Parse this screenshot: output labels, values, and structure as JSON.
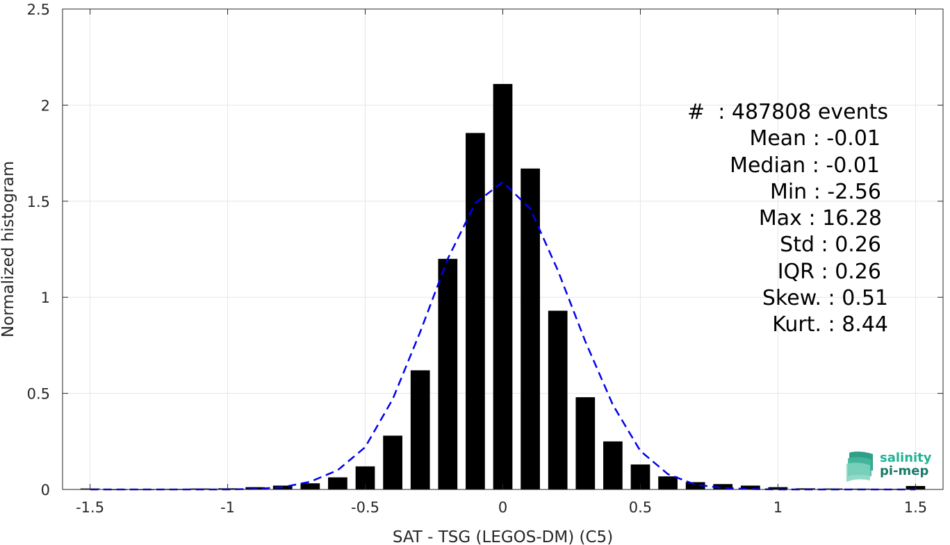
{
  "chart_data": {
    "type": "bar",
    "xlabel": "SAT - TSG (LEGOS-DM) (C5)",
    "ylabel": "Normalized histogram",
    "xlim": [
      -1.6,
      1.6
    ],
    "ylim": [
      0,
      2.5
    ],
    "x_ticks": [
      "-1.5",
      "-1",
      "-0.5",
      "0",
      "0.5",
      "1",
      "1.5"
    ],
    "y_ticks": [
      "0",
      "0.5",
      "1",
      "1.5",
      "2",
      "2.5"
    ],
    "grid": true,
    "bar_width": 0.07,
    "bar_color": "#000000",
    "bars": [
      {
        "x": -1.5,
        "y": 0.005
      },
      {
        "x": -1.4,
        "y": 0.002
      },
      {
        "x": -1.3,
        "y": 0.002
      },
      {
        "x": -1.2,
        "y": 0.003
      },
      {
        "x": -1.1,
        "y": 0.005
      },
      {
        "x": -1.0,
        "y": 0.006
      },
      {
        "x": -0.9,
        "y": 0.012
      },
      {
        "x": -0.8,
        "y": 0.02
      },
      {
        "x": -0.7,
        "y": 0.032
      },
      {
        "x": -0.6,
        "y": 0.063
      },
      {
        "x": -0.5,
        "y": 0.12
      },
      {
        "x": -0.4,
        "y": 0.28
      },
      {
        "x": -0.3,
        "y": 0.62
      },
      {
        "x": -0.2,
        "y": 1.2
      },
      {
        "x": -0.1,
        "y": 1.855
      },
      {
        "x": 0.0,
        "y": 2.11
      },
      {
        "x": 0.1,
        "y": 1.67
      },
      {
        "x": 0.2,
        "y": 0.93
      },
      {
        "x": 0.3,
        "y": 0.48
      },
      {
        "x": 0.4,
        "y": 0.25
      },
      {
        "x": 0.5,
        "y": 0.13
      },
      {
        "x": 0.6,
        "y": 0.068
      },
      {
        "x": 0.7,
        "y": 0.038
      },
      {
        "x": 0.8,
        "y": 0.028
      },
      {
        "x": 0.9,
        "y": 0.02
      },
      {
        "x": 1.0,
        "y": 0.012
      },
      {
        "x": 1.1,
        "y": 0.006
      },
      {
        "x": 1.2,
        "y": 0.005
      },
      {
        "x": 1.3,
        "y": 0.004
      },
      {
        "x": 1.4,
        "y": 0.003
      },
      {
        "x": 1.5,
        "y": 0.018
      }
    ],
    "fit_curve": {
      "style": "dashed",
      "color": "#0000ee",
      "points": [
        [
          -1.5,
          0.0
        ],
        [
          -1.2,
          0.0
        ],
        [
          -1.0,
          0.0
        ],
        [
          -0.9,
          0.003
        ],
        [
          -0.8,
          0.012
        ],
        [
          -0.7,
          0.04
        ],
        [
          -0.6,
          0.1
        ],
        [
          -0.5,
          0.22
        ],
        [
          -0.4,
          0.47
        ],
        [
          -0.3,
          0.82
        ],
        [
          -0.2,
          1.2
        ],
        [
          -0.1,
          1.49
        ],
        [
          0.0,
          1.6
        ],
        [
          0.1,
          1.46
        ],
        [
          0.2,
          1.14
        ],
        [
          0.3,
          0.77
        ],
        [
          0.4,
          0.44
        ],
        [
          0.5,
          0.2
        ],
        [
          0.6,
          0.08
        ],
        [
          0.7,
          0.025
        ],
        [
          0.8,
          0.008
        ],
        [
          0.9,
          0.002
        ],
        [
          1.0,
          0.0
        ],
        [
          1.2,
          0.0
        ],
        [
          1.5,
          0.0
        ]
      ]
    }
  },
  "stats": {
    "events": "#  : 487808 events",
    "mean": "Mean : -0.01",
    "median": "Median : -0.01",
    "min": "Min : -2.56",
    "max": "Max : 16.28",
    "std": "Std : 0.26",
    "iqr": "IQR : 0.26",
    "skew": "Skew. : 0.51",
    "kurt": "Kurt. : 8.44"
  },
  "logo": {
    "line1": "salinity",
    "line2": "pi-mep",
    "color1": "#1fb394",
    "color2": "#1a7a6a"
  }
}
